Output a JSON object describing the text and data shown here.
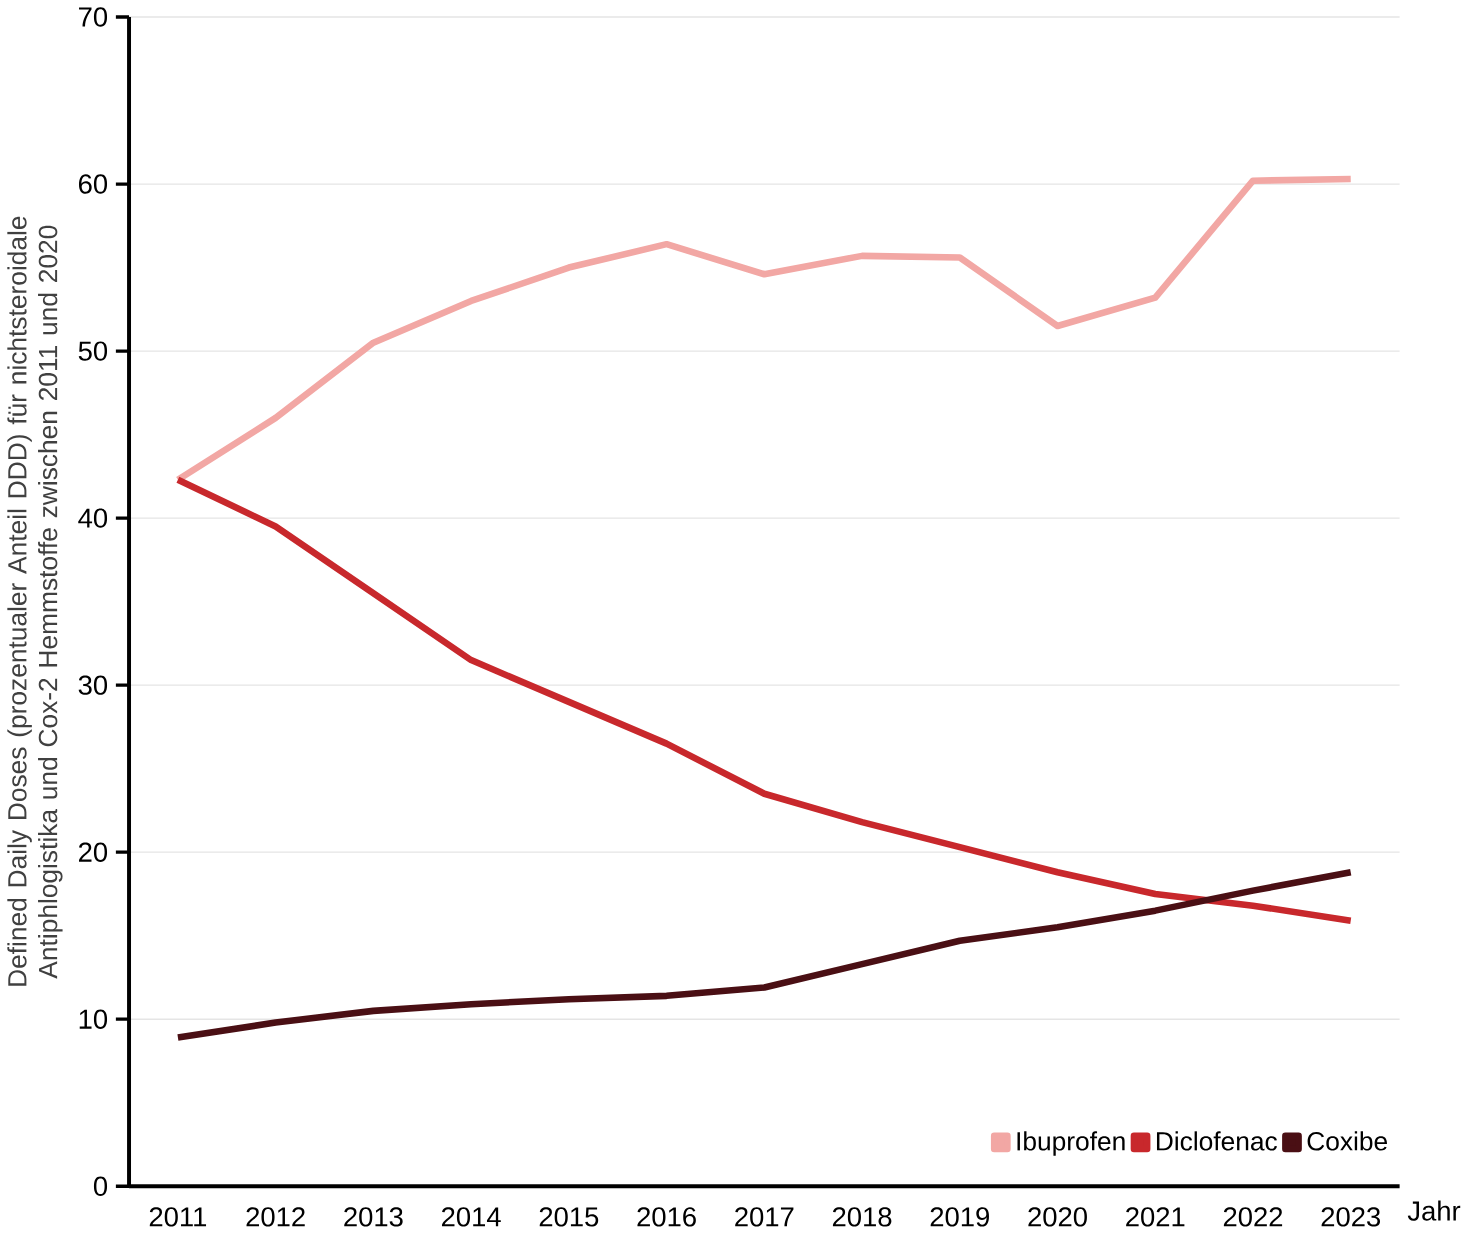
{
  "chart_data": {
    "type": "line",
    "xlabel": "Jahr",
    "ylabel": "Defined Daily Doses (prozentualer Anteil DDD) für nichtsteroidale Antiphlogistika und Cox-2 Hemmstoffe zwischen 2011 und 2020",
    "categories": [
      "2011",
      "2012",
      "2013",
      "2014",
      "2015",
      "2016",
      "2017",
      "2018",
      "2019",
      "2020",
      "2021",
      "2022",
      "2023"
    ],
    "series": [
      {
        "name": "Ibuprofen",
        "color": "#f2a7a4",
        "values": [
          42.3,
          46,
          50.5,
          53,
          55,
          56.4,
          54.6,
          55.7,
          55.6,
          51.5,
          53.2,
          60.2,
          60.3
        ]
      },
      {
        "name": "Diclofenac",
        "color": "#c8282c",
        "values": [
          42.3,
          39.5,
          35.5,
          31.5,
          29,
          26.5,
          23.5,
          21.8,
          20.3,
          18.8,
          17.5,
          16.8,
          15.9
        ]
      },
      {
        "name": "Coxibe",
        "color": "#4a0f14",
        "values": [
          8.9,
          9.8,
          10.5,
          10.9,
          11.2,
          11.4,
          11.9,
          13.3,
          14.7,
          15.5,
          16.5,
          17.7,
          18.8
        ]
      }
    ],
    "ylim": [
      0,
      70
    ],
    "yticks": [
      0,
      10,
      20,
      30,
      40,
      50,
      60,
      70
    ],
    "grid": "y",
    "legend": "bottom right",
    "marker": "none",
    "line_style": "solid"
  }
}
